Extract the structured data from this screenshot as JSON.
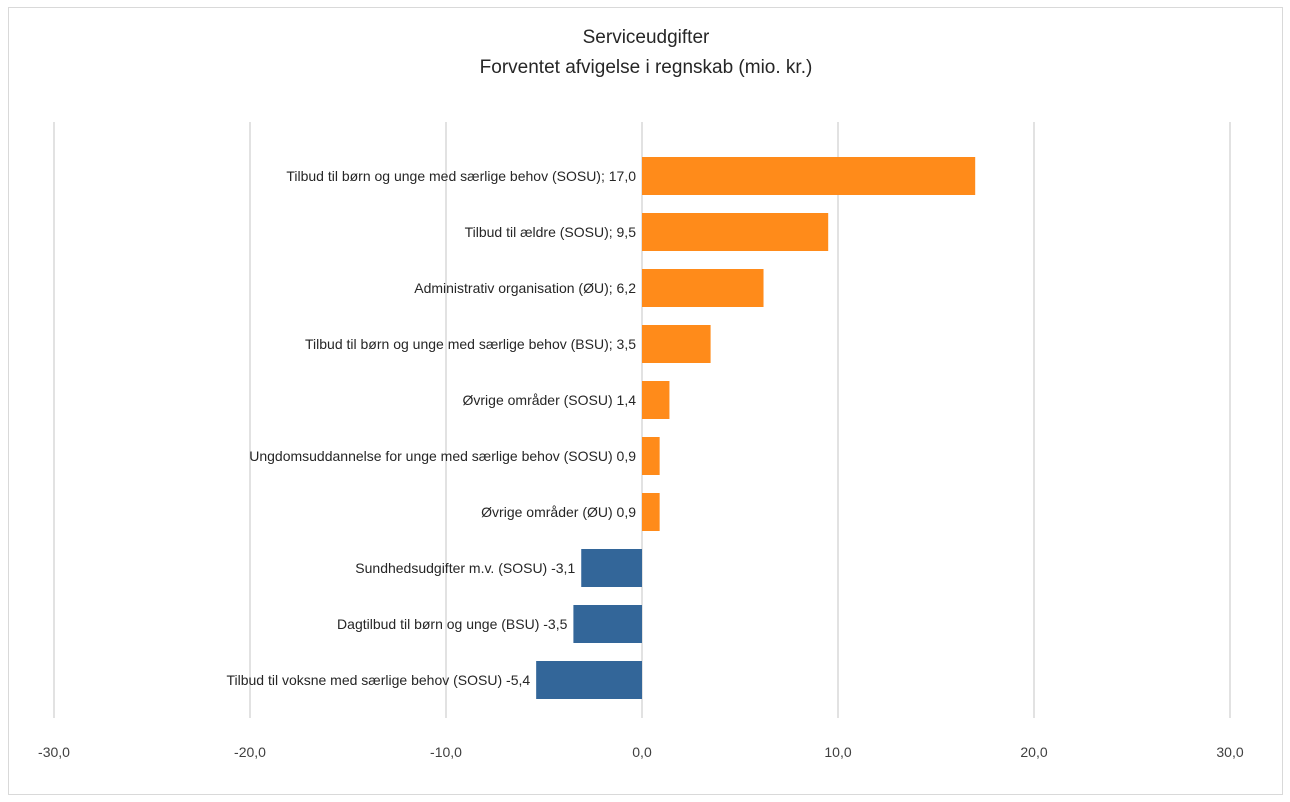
{
  "chart_data": {
    "type": "bar",
    "orientation": "horizontal",
    "title": "Serviceudgifter",
    "subtitle": "Forventet afvigelse i regnskab (mio. kr.)",
    "xlim": [
      -30,
      30
    ],
    "x_ticks": [
      -30,
      -20,
      -10,
      0,
      10,
      20,
      30
    ],
    "x_tick_labels": [
      "-30,0",
      "-20,0",
      "-10,0",
      "0,0",
      "10,0",
      "20,0",
      "30,0"
    ],
    "grid": true,
    "legend": "none",
    "colors": {
      "positive": "#FF8B1A",
      "negative": "#336699",
      "grid": "#d9d9d9"
    },
    "bars": [
      {
        "label": "Tilbud til børn og unge med særlige behov (SOSU); 17,0",
        "value": 17.0
      },
      {
        "label": "Tilbud til ældre (SOSU); 9,5",
        "value": 9.5
      },
      {
        "label": "Administrativ organisation (ØU); 6,2",
        "value": 6.2
      },
      {
        "label": "Tilbud til børn og unge med særlige behov (BSU); 3,5",
        "value": 3.5
      },
      {
        "label": "Øvrige områder (SOSU) 1,4",
        "value": 1.4
      },
      {
        "label": "Ungdomsuddannelse for unge med særlige behov (SOSU) 0,9",
        "value": 0.9
      },
      {
        "label": "Øvrige områder (ØU) 0,9",
        "value": 0.9
      },
      {
        "label": "Sundhedsudgifter m.v. (SOSU) -3,1",
        "value": -3.1
      },
      {
        "label": "Dagtilbud til børn og unge (BSU) -3,5",
        "value": -3.5
      },
      {
        "label": "Tilbud til voksne med særlige behov (SOSU) -5,4",
        "value": -5.4
      }
    ]
  }
}
